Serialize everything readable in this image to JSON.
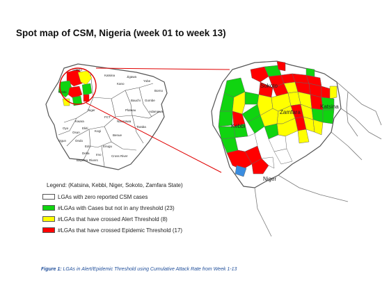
{
  "title": "Spot map of CSM, Nigeria (week 01 to week 13)",
  "colors": {
    "zero": "#ffffff",
    "cases": "#10d410",
    "alert": "#ffff00",
    "epidemic": "#ff0000",
    "boundary": "#555555",
    "connector": "#e00000"
  },
  "nigeria_map": {
    "state_labels": [
      "Sokoto",
      "Kebbi",
      "Katsina",
      "Kano",
      "Jigawa",
      "Yobe",
      "Borno",
      "Bauchi",
      "Gombe",
      "Adamawa",
      "Plateau",
      "Nasarawa",
      "FCT",
      "Niger",
      "Kwara",
      "Oyo",
      "Ogun",
      "Osun",
      "Ekiti",
      "Ondo",
      "Kogi",
      "Benue",
      "Taraba",
      "Edo",
      "Enugu",
      "Delta",
      "Imo",
      "Rivers",
      "Bayelsa",
      "Cross River"
    ]
  },
  "zoom_map": {
    "state_labels": [
      "Sokoto",
      "Zamfara",
      "Katsina",
      "Kebbi",
      "Niger"
    ]
  },
  "legend": {
    "heading": "Legend: (Katsina, Kebbi, Niger, Sokoto, Zamfara State)",
    "items": [
      {
        "label": "LGAs with zero reported CSM cases",
        "color_key": "zero"
      },
      {
        "label": "#LGAs with Cases but not in any threshold (23)",
        "color_key": "cases"
      },
      {
        "label": "#LGAs that have crossed Alert Threshold (8)",
        "color_key": "alert"
      },
      {
        "label": "#LGAs that have crossed Epidemic Threshold (17)",
        "color_key": "epidemic"
      }
    ]
  },
  "caption": {
    "label": "Figure 1:",
    "text": "LGAs in Alert/Epidemic Threshold using Cumulative Attack Rate from Week 1-13"
  }
}
